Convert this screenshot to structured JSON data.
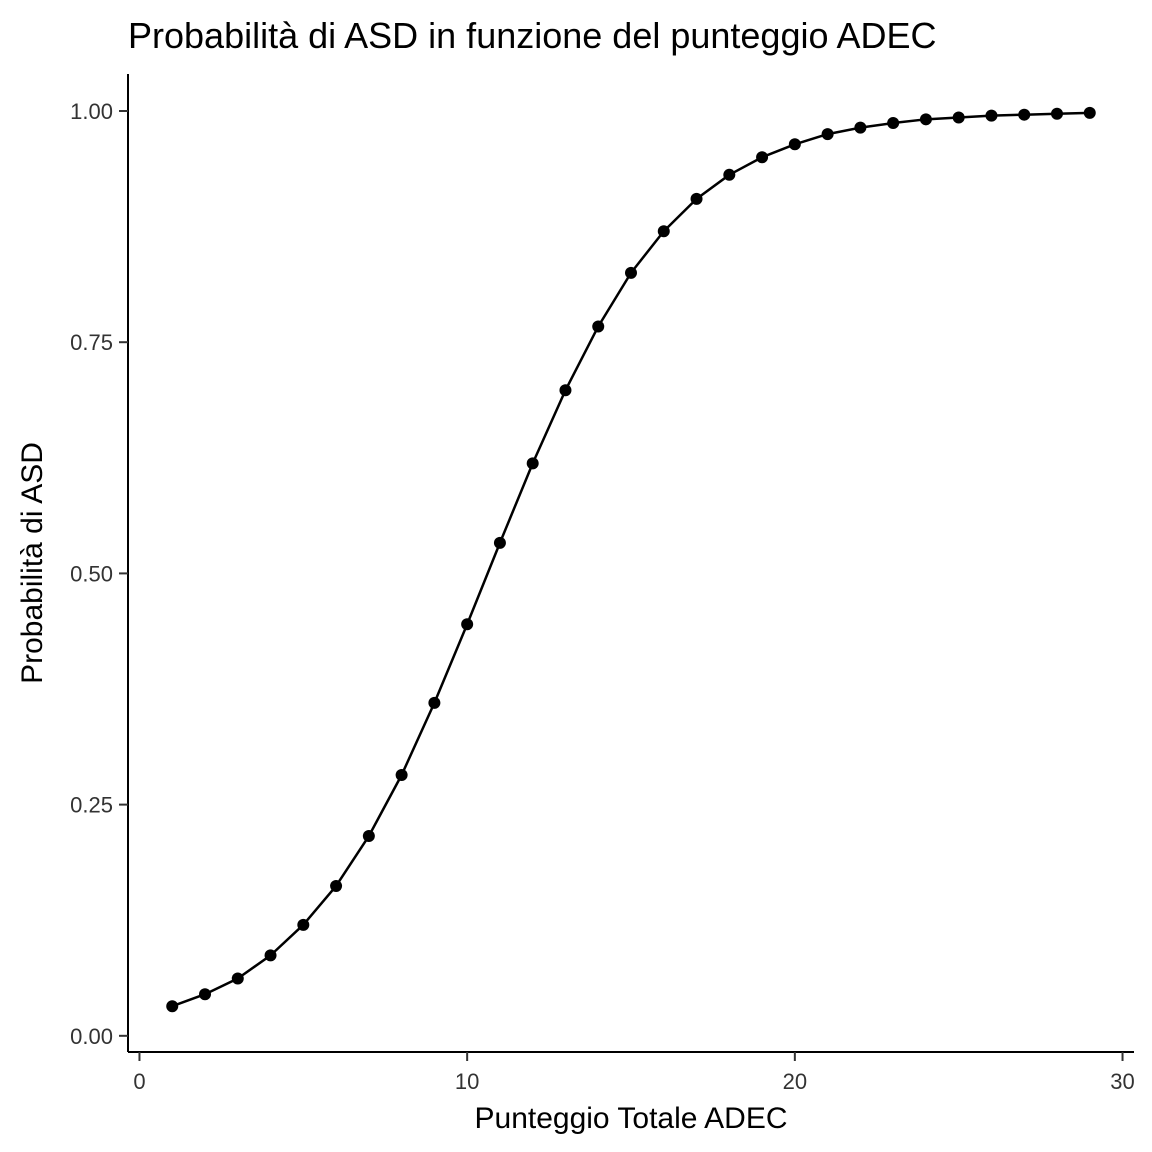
{
  "chart_data": {
    "type": "line",
    "title": "Probabilità di ASD in funzione del punteggio ADEC",
    "xlabel": "Punteggio Totale ADEC",
    "ylabel": "Probabilità di ASD",
    "xlim": [
      -0.35,
      30.35
    ],
    "ylim": [
      -0.0175,
      1.04
    ],
    "x_ticks": [
      0,
      10,
      20,
      30
    ],
    "x_tick_labels": [
      "0",
      "10",
      "20",
      "30"
    ],
    "y_ticks": [
      0,
      0.25,
      0.5,
      0.75,
      1
    ],
    "y_tick_labels": [
      "0.00",
      "0.25",
      "0.50",
      "0.75",
      "1.00"
    ],
    "grid": false,
    "legend": "none",
    "line_color": "#000000",
    "series": [
      {
        "x": [
          1,
          2,
          3,
          4,
          5,
          6,
          7,
          8,
          9,
          10,
          11,
          12,
          13,
          14,
          15,
          16,
          17,
          18,
          19,
          20,
          21,
          22,
          23,
          24,
          25,
          26,
          27,
          28,
          29
        ],
        "y": [
          0.032,
          0.045,
          0.062,
          0.087,
          0.12,
          0.162,
          0.216,
          0.282,
          0.36,
          0.445,
          0.533,
          0.619,
          0.698,
          0.767,
          0.825,
          0.87,
          0.905,
          0.931,
          0.95,
          0.964,
          0.975,
          0.982,
          0.987,
          0.991,
          0.993,
          0.995,
          0.996,
          0.997,
          0.998
        ]
      }
    ]
  }
}
